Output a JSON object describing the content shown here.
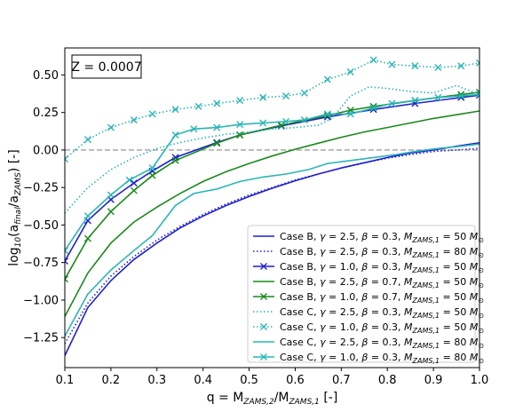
{
  "chart_data": {
    "type": "line",
    "annotation": "Z = 0.0007",
    "xlabel": "q = M_{ZAMS,2}/M_{ZAMS,1} [-]",
    "ylabel": "log_{10}(a_{final}/a_{ZAMS}) [-]",
    "xlim": [
      0.1,
      1.0
    ],
    "ylim": [
      -1.45,
      0.68
    ],
    "xticks": [
      0.1,
      0.2,
      0.3,
      0.4,
      0.5,
      0.6,
      0.7,
      0.8,
      0.9,
      1.0
    ],
    "xticklabels": [
      "0.1",
      "0.2",
      "0.3",
      "0.4",
      "0.5",
      "0.6",
      "0.7",
      "0.8",
      "0.9",
      "1.0"
    ],
    "yticks": [
      -1.25,
      -1.0,
      -0.75,
      -0.5,
      -0.25,
      0.0,
      0.25,
      0.5
    ],
    "yticklabels": [
      "−1.25",
      "−1.00",
      "−0.75",
      "−0.50",
      "−0.25",
      "0.00",
      "0.25",
      "0.50"
    ],
    "reference_line": {
      "y": 0.0,
      "style": "dashed",
      "color": "#a0a0a0"
    },
    "grid": false,
    "legend_position": "lower-right",
    "series": [
      {
        "case": "Case B",
        "gamma": "2.5",
        "beta": "0.3",
        "mass": "50",
        "color": "#1f1fd6",
        "dash": "solid",
        "marker": "none",
        "points": [
          [
            0.1,
            -1.37
          ],
          [
            0.15,
            -1.05
          ],
          [
            0.2,
            -0.87
          ],
          [
            0.25,
            -0.73
          ],
          [
            0.3,
            -0.62
          ],
          [
            0.35,
            -0.52
          ],
          [
            0.4,
            -0.44
          ],
          [
            0.45,
            -0.37
          ],
          [
            0.5,
            -0.31
          ],
          [
            0.55,
            -0.255
          ],
          [
            0.6,
            -0.205
          ],
          [
            0.65,
            -0.16
          ],
          [
            0.7,
            -0.12
          ],
          [
            0.75,
            -0.085
          ],
          [
            0.8,
            -0.05
          ],
          [
            0.85,
            -0.02
          ],
          [
            0.9,
            0.0
          ],
          [
            0.95,
            0.025
          ],
          [
            1.0,
            0.048
          ]
        ]
      },
      {
        "case": "Case B",
        "gamma": "2.5",
        "beta": "0.3",
        "mass": "80",
        "color": "#1f1fd6",
        "dash": "dotted",
        "marker": "none",
        "points": [
          [
            0.1,
            -1.29
          ],
          [
            0.15,
            -1.02
          ],
          [
            0.2,
            -0.84
          ],
          [
            0.25,
            -0.71
          ],
          [
            0.3,
            -0.6
          ],
          [
            0.35,
            -0.51
          ],
          [
            0.4,
            -0.43
          ],
          [
            0.45,
            -0.36
          ],
          [
            0.5,
            -0.3
          ],
          [
            0.55,
            -0.25
          ],
          [
            0.6,
            -0.2
          ],
          [
            0.65,
            -0.16
          ],
          [
            0.7,
            -0.12
          ],
          [
            0.75,
            -0.085
          ],
          [
            0.8,
            -0.055
          ],
          [
            0.85,
            -0.03
          ],
          [
            0.9,
            -0.01
          ],
          [
            0.95,
            0.0
          ],
          [
            1.0,
            0.01
          ]
        ]
      },
      {
        "case": "Case B",
        "gamma": "1.0",
        "beta": "0.3",
        "mass": "50",
        "color": "#1f1fd6",
        "dash": "solid",
        "marker": "x",
        "points": [
          [
            0.1,
            -0.74
          ],
          [
            0.15,
            -0.47
          ],
          [
            0.2,
            -0.33
          ],
          [
            0.25,
            -0.22
          ],
          [
            0.29,
            -0.14
          ],
          [
            0.34,
            -0.05
          ],
          [
            0.43,
            0.05
          ],
          [
            0.48,
            0.1
          ],
          [
            0.57,
            0.16
          ],
          [
            0.67,
            0.22
          ],
          [
            0.77,
            0.27
          ],
          [
            0.86,
            0.31
          ],
          [
            0.96,
            0.35
          ],
          [
            1.0,
            0.365
          ]
        ]
      },
      {
        "case": "Case B",
        "gamma": "2.5",
        "beta": "0.7",
        "mass": "50",
        "color": "#1a8a1a",
        "dash": "solid",
        "marker": "none",
        "points": [
          [
            0.1,
            -1.11
          ],
          [
            0.15,
            -0.82
          ],
          [
            0.2,
            -0.62
          ],
          [
            0.25,
            -0.48
          ],
          [
            0.3,
            -0.38
          ],
          [
            0.35,
            -0.29
          ],
          [
            0.4,
            -0.21
          ],
          [
            0.45,
            -0.145
          ],
          [
            0.5,
            -0.09
          ],
          [
            0.55,
            -0.04
          ],
          [
            0.6,
            0.005
          ],
          [
            0.65,
            0.045
          ],
          [
            0.7,
            0.085
          ],
          [
            0.75,
            0.12
          ],
          [
            0.8,
            0.15
          ],
          [
            0.85,
            0.18
          ],
          [
            0.9,
            0.21
          ],
          [
            0.95,
            0.235
          ],
          [
            1.0,
            0.26
          ]
        ]
      },
      {
        "case": "Case B",
        "gamma": "1.0",
        "beta": "0.7",
        "mass": "50",
        "color": "#1a8a1a",
        "dash": "solid",
        "marker": "x",
        "points": [
          [
            0.1,
            -0.86
          ],
          [
            0.15,
            -0.59
          ],
          [
            0.2,
            -0.41
          ],
          [
            0.25,
            -0.27
          ],
          [
            0.29,
            -0.17
          ],
          [
            0.34,
            -0.07
          ],
          [
            0.43,
            0.045
          ],
          [
            0.48,
            0.1
          ],
          [
            0.57,
            0.165
          ],
          [
            0.67,
            0.23
          ],
          [
            0.72,
            0.265
          ],
          [
            0.77,
            0.29
          ],
          [
            0.86,
            0.33
          ],
          [
            0.96,
            0.37
          ],
          [
            1.0,
            0.385
          ]
        ]
      },
      {
        "case": "Case C",
        "gamma": "2.5",
        "beta": "0.3",
        "mass": "50",
        "color": "#2ab5b5",
        "dash": "dotted",
        "marker": "none",
        "points": [
          [
            0.1,
            -0.42
          ],
          [
            0.15,
            -0.25
          ],
          [
            0.2,
            -0.13
          ],
          [
            0.25,
            -0.05
          ],
          [
            0.3,
            0.01
          ],
          [
            0.35,
            0.05
          ],
          [
            0.4,
            0.08
          ],
          [
            0.45,
            0.105
          ],
          [
            0.5,
            0.12
          ],
          [
            0.55,
            0.14
          ],
          [
            0.6,
            0.15
          ],
          [
            0.65,
            0.165
          ],
          [
            0.68,
            0.21
          ],
          [
            0.72,
            0.36
          ],
          [
            0.76,
            0.42
          ],
          [
            0.8,
            0.41
          ],
          [
            0.85,
            0.39
          ],
          [
            0.9,
            0.38
          ],
          [
            0.95,
            0.43
          ],
          [
            1.0,
            0.37
          ]
        ]
      },
      {
        "case": "Case C",
        "gamma": "1.0",
        "beta": "0.3",
        "mass": "50",
        "color": "#2ab5b5",
        "dash": "dotted",
        "marker": "x",
        "points": [
          [
            0.1,
            -0.06
          ],
          [
            0.15,
            0.07
          ],
          [
            0.2,
            0.15
          ],
          [
            0.25,
            0.2
          ],
          [
            0.29,
            0.24
          ],
          [
            0.34,
            0.27
          ],
          [
            0.39,
            0.29
          ],
          [
            0.43,
            0.31
          ],
          [
            0.48,
            0.33
          ],
          [
            0.53,
            0.35
          ],
          [
            0.58,
            0.36
          ],
          [
            0.62,
            0.38
          ],
          [
            0.67,
            0.47
          ],
          [
            0.72,
            0.52
          ],
          [
            0.77,
            0.6
          ],
          [
            0.81,
            0.57
          ],
          [
            0.86,
            0.56
          ],
          [
            0.91,
            0.55
          ],
          [
            0.96,
            0.56
          ],
          [
            1.0,
            0.58
          ]
        ]
      },
      {
        "case": "Case C",
        "gamma": "2.5",
        "beta": "0.3",
        "mass": "80",
        "color": "#2ab5b5",
        "dash": "solid",
        "marker": "none",
        "points": [
          [
            0.1,
            -1.24
          ],
          [
            0.15,
            -0.96
          ],
          [
            0.2,
            -0.8
          ],
          [
            0.25,
            -0.67
          ],
          [
            0.29,
            -0.57
          ],
          [
            0.34,
            -0.37
          ],
          [
            0.38,
            -0.29
          ],
          [
            0.43,
            -0.26
          ],
          [
            0.48,
            -0.21
          ],
          [
            0.53,
            -0.18
          ],
          [
            0.58,
            -0.16
          ],
          [
            0.63,
            -0.13
          ],
          [
            0.67,
            -0.09
          ],
          [
            0.72,
            -0.07
          ],
          [
            0.77,
            -0.05
          ],
          [
            0.82,
            -0.03
          ],
          [
            0.86,
            -0.01
          ],
          [
            0.91,
            0.01
          ],
          [
            0.96,
            0.025
          ],
          [
            1.0,
            0.04
          ]
        ]
      },
      {
        "case": "Case C",
        "gamma": "1.0",
        "beta": "0.3",
        "mass": "80",
        "color": "#2ab5b5",
        "dash": "solid",
        "marker": "x",
        "points": [
          [
            0.1,
            -0.67
          ],
          [
            0.15,
            -0.44
          ],
          [
            0.2,
            -0.3
          ],
          [
            0.24,
            -0.2
          ],
          [
            0.29,
            -0.12
          ],
          [
            0.34,
            0.1
          ],
          [
            0.38,
            0.14
          ],
          [
            0.43,
            0.15
          ],
          [
            0.48,
            0.17
          ],
          [
            0.53,
            0.18
          ],
          [
            0.58,
            0.19
          ],
          [
            0.62,
            0.2
          ],
          [
            0.67,
            0.24
          ],
          [
            0.72,
            0.24
          ],
          [
            0.77,
            0.28
          ],
          [
            0.81,
            0.31
          ],
          [
            0.86,
            0.33
          ],
          [
            0.91,
            0.35
          ],
          [
            0.96,
            0.36
          ],
          [
            1.0,
            0.37
          ]
        ]
      }
    ]
  }
}
